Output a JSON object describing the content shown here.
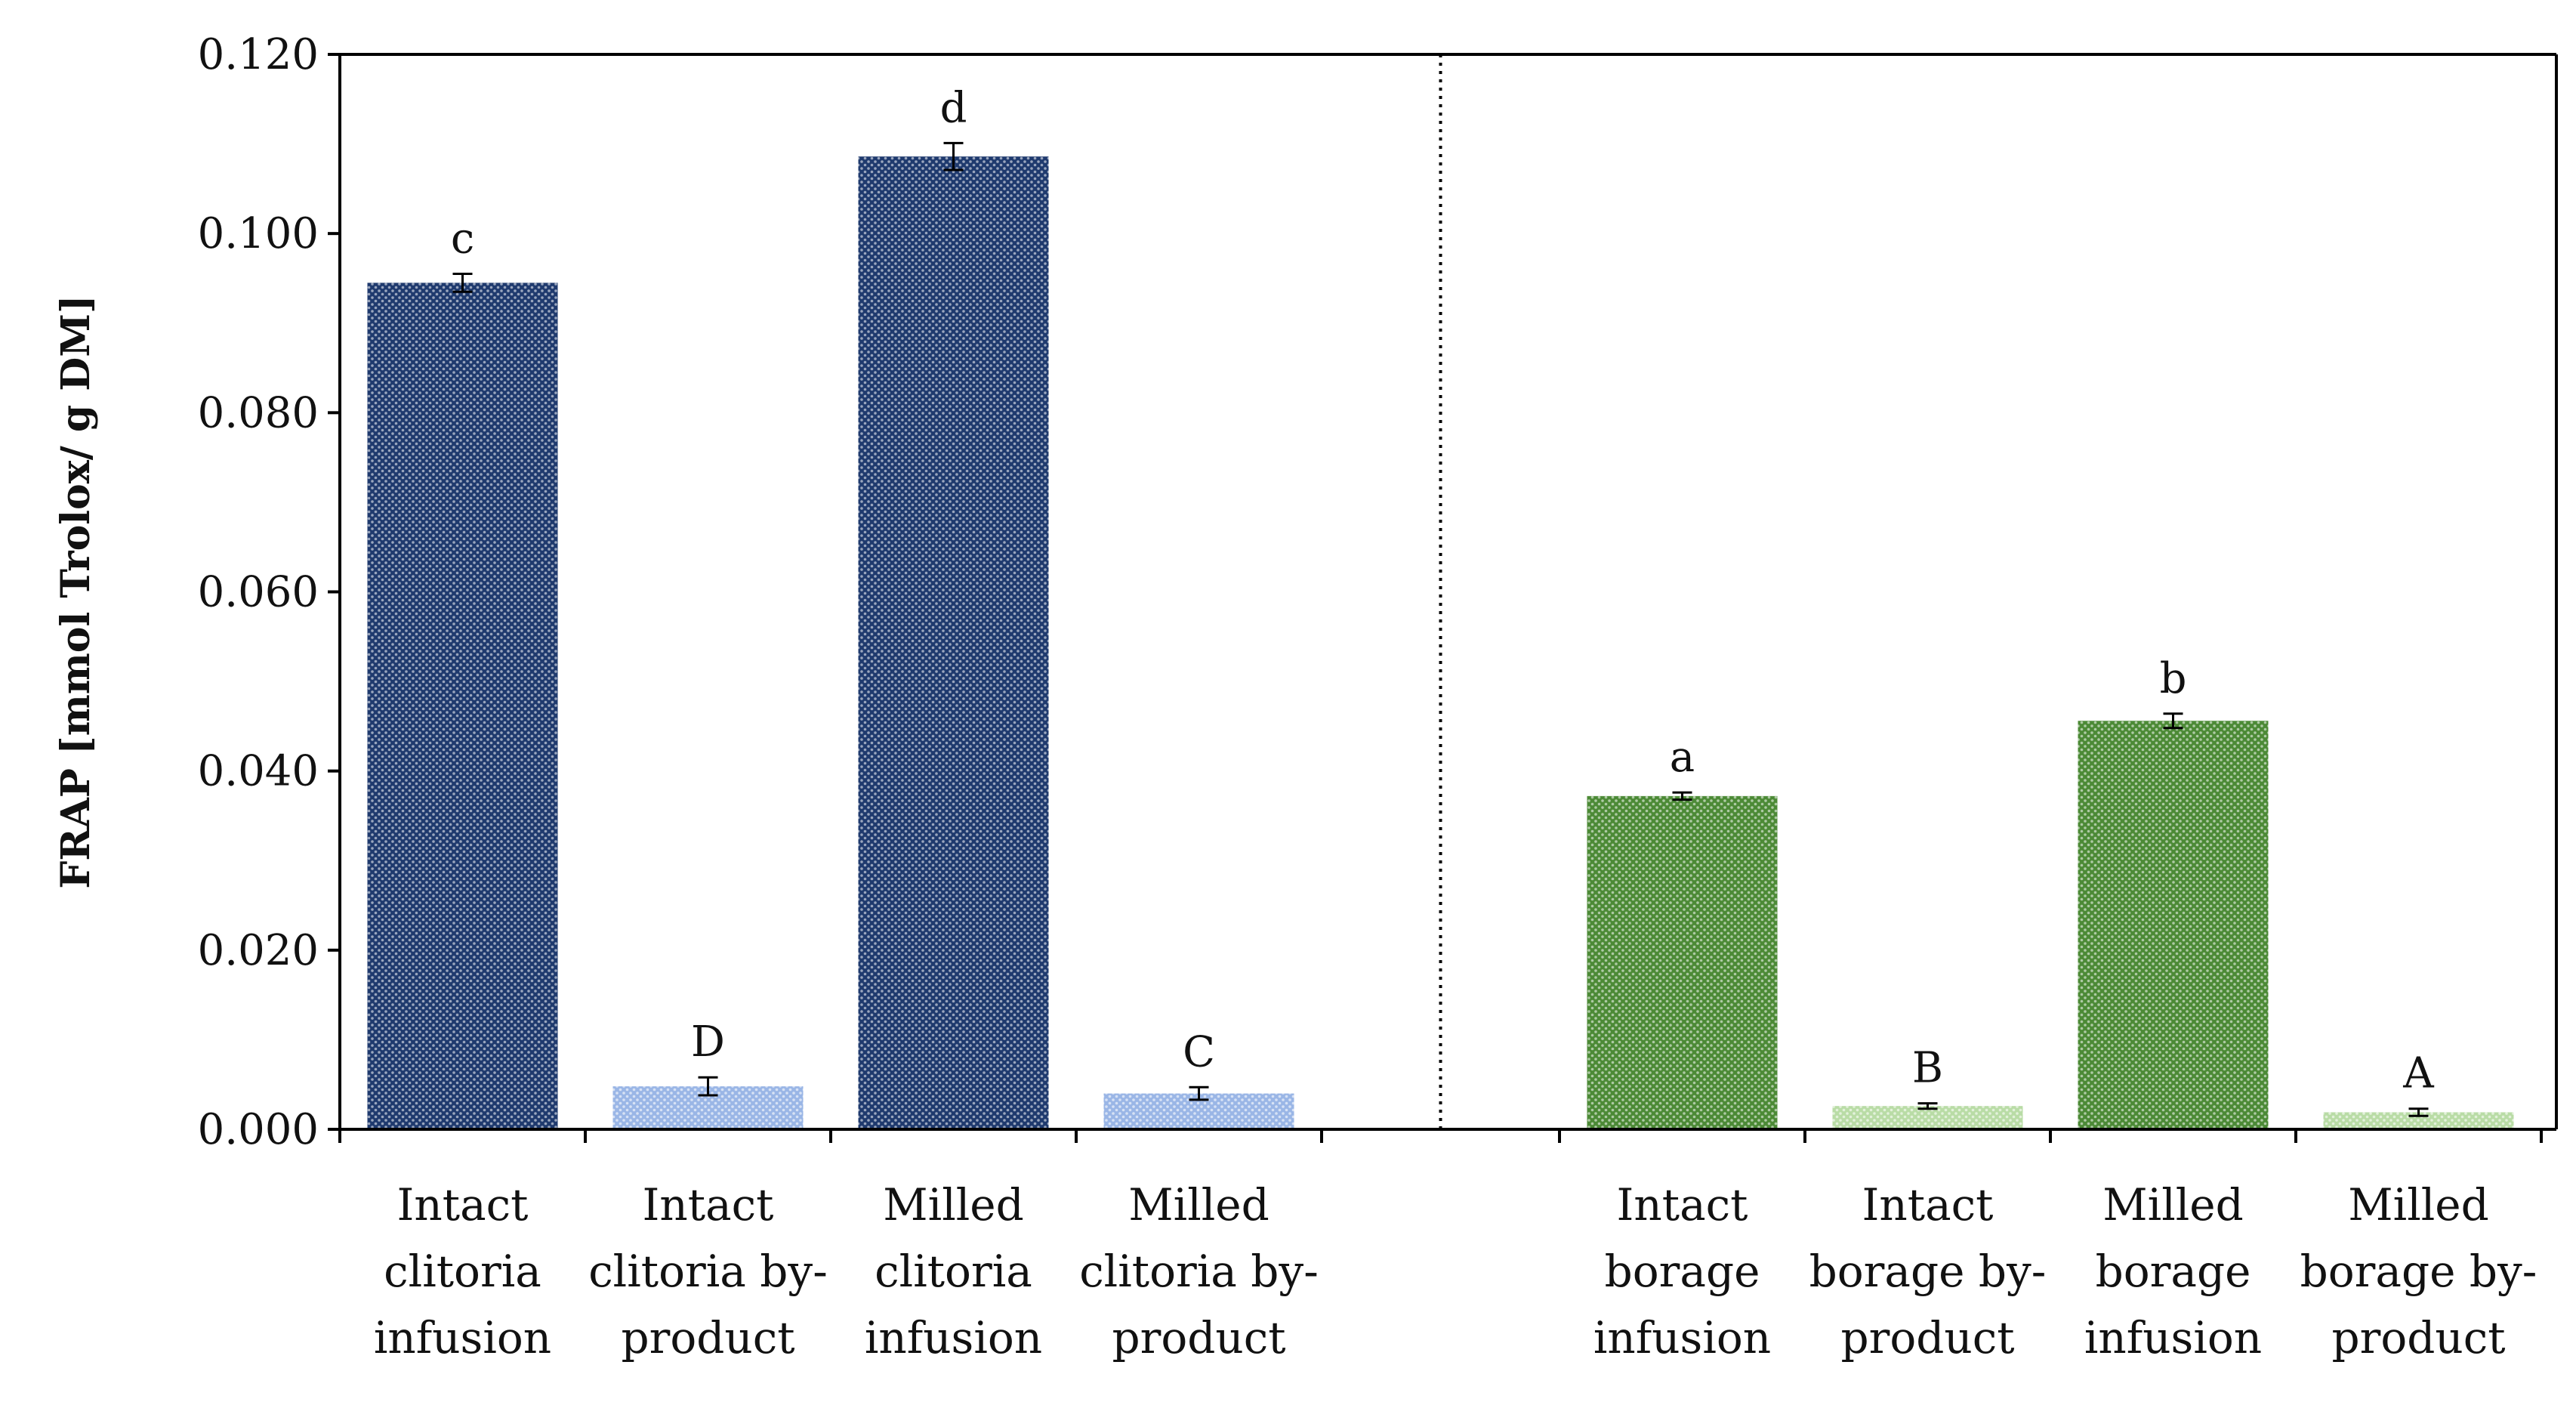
{
  "chart_data": {
    "type": "bar",
    "title": "",
    "ylabel": "FRAP [mmol Trolox/ g DM]",
    "xlabel": "",
    "ylim": [
      0,
      0.12
    ],
    "yticks": [
      "0.000",
      "0.020",
      "0.040",
      "0.060",
      "0.080",
      "0.100",
      "0.120"
    ],
    "grid": false,
    "legend": "none",
    "groups": [
      {
        "bars": [
          {
            "lines": [
              "Intact",
              "clitoria",
              "infusion"
            ],
            "value": 0.0945,
            "error": 0.001,
            "sig": "c",
            "color": "#1f3a6e",
            "pattern": "dark"
          },
          {
            "lines": [
              "Intact",
              "clitoria by-",
              "product"
            ],
            "value": 0.0048,
            "error": 0.001,
            "sig": "D",
            "color": "#9ab6e6",
            "pattern": "light"
          },
          {
            "lines": [
              "Milled",
              "clitoria",
              "infusion"
            ],
            "value": 0.1086,
            "error": 0.0015,
            "sig": "d",
            "color": "#1f3a6e",
            "pattern": "dark"
          },
          {
            "lines": [
              "Milled",
              "clitoria by-",
              "product"
            ],
            "value": 0.004,
            "error": 0.0007,
            "sig": "C",
            "color": "#9ab6e6",
            "pattern": "light"
          }
        ]
      },
      {
        "bars": [
          {
            "lines": [
              "Intact",
              "borage",
              "infusion"
            ],
            "value": 0.0372,
            "error": 0.0004,
            "sig": "a",
            "color": "#4c8a36",
            "pattern": "dark"
          },
          {
            "lines": [
              "Intact",
              "borage by-",
              "product"
            ],
            "value": 0.0026,
            "error": 0.0003,
            "sig": "B",
            "color": "#b9dca6",
            "pattern": "light"
          },
          {
            "lines": [
              "Milled",
              "borage",
              "infusion"
            ],
            "value": 0.0456,
            "error": 0.0008,
            "sig": "b",
            "color": "#4c8a36",
            "pattern": "dark"
          },
          {
            "lines": [
              "Milled",
              "borage by-",
              "product"
            ],
            "value": 0.0019,
            "error": 0.0004,
            "sig": "A",
            "color": "#b9dca6",
            "pattern": "light"
          }
        ]
      }
    ]
  }
}
